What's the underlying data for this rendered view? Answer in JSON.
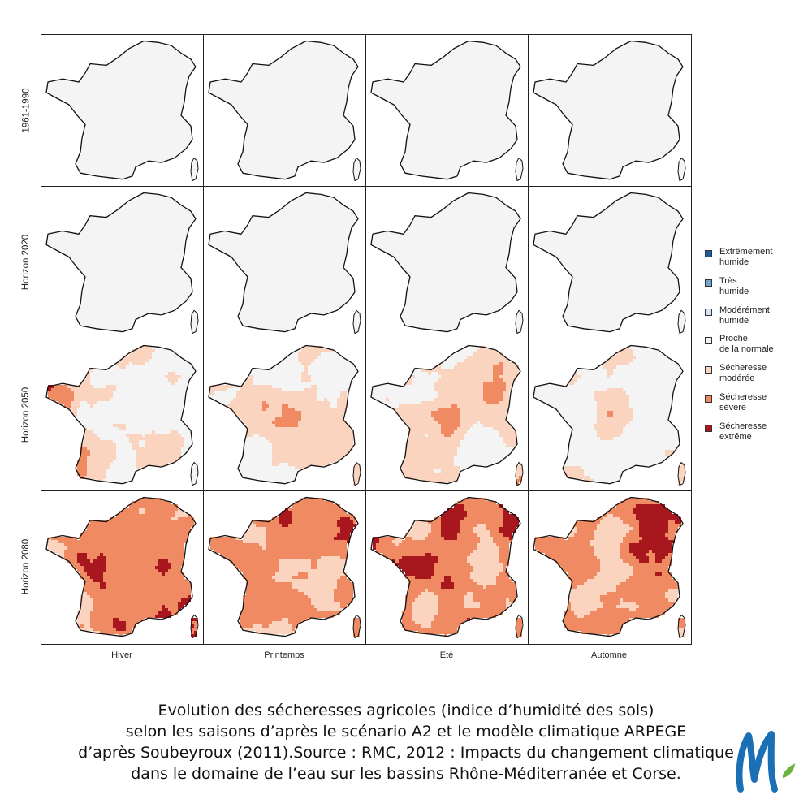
{
  "rows": [
    "1961-1990",
    "Horizon 2020",
    "Horizon 2050",
    "Horizon 2080"
  ],
  "columns": [
    "Hiver",
    "Printemps",
    "Eté",
    "Automne"
  ],
  "legend": [
    {
      "line1": "Extrêmement",
      "line2": "humide",
      "color": "#1f5c9e"
    },
    {
      "line1": "Très",
      "line2": "humide",
      "color": "#6fa6d6"
    },
    {
      "line1": "Modérément",
      "line2": "humide",
      "color": "#d4e4f2"
    },
    {
      "line1": "Proche",
      "line2": "de la normale",
      "color": "#f4f4f4"
    },
    {
      "line1": "Sécheresse",
      "line2": "modérée",
      "color": "#fbd4c0"
    },
    {
      "line1": "Sécheresse",
      "line2": "sévère",
      "color": "#ef8a62"
    },
    {
      "line1": "Sécheresse",
      "line2": "extrême",
      "color": "#a8161e"
    }
  ],
  "drought_intensity": [
    [
      0.0,
      0.0,
      0.0,
      0.0
    ],
    [
      0.08,
      0.06,
      0.07,
      0.05
    ],
    [
      0.45,
      0.5,
      0.55,
      0.42
    ],
    [
      0.85,
      0.82,
      0.88,
      0.85
    ]
  ],
  "caption": [
    "Evolution des sécheresses agricoles (indice d’humidité des sols)",
    "selon les saisons d’après le scénario A2 et le modèle climatique ARPEGE",
    "d’après Soubeyroux (2011).Source : RMC, 2012 : Impacts du changement climatique",
    "dans le domaine de l’eau sur les bassins Rhône-Méditerranée et Corse."
  ],
  "logo": {
    "icon": "brand-m-logo-icon",
    "color_main": "#1b6fb5",
    "color_accent": "#6cb33f"
  }
}
